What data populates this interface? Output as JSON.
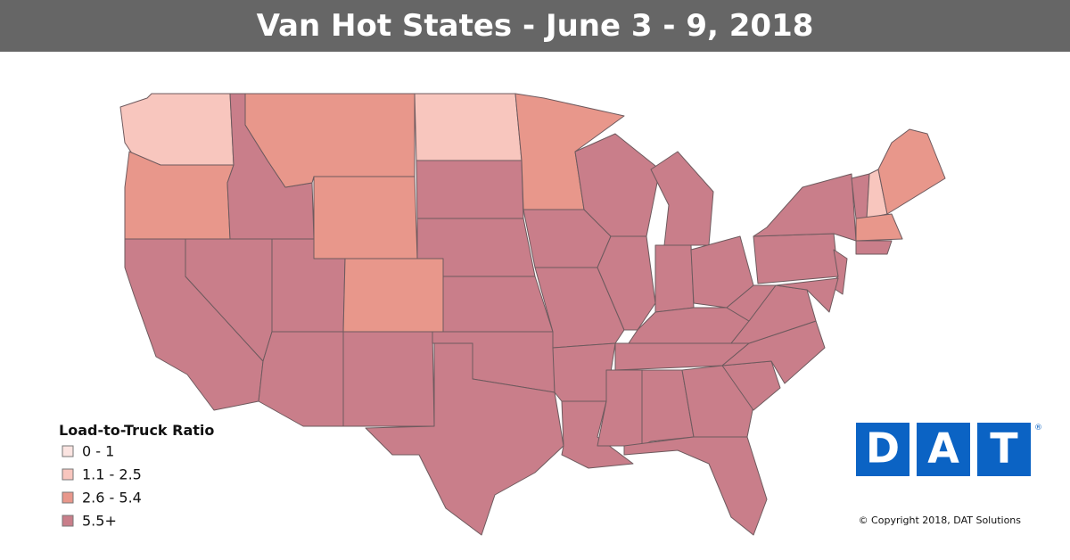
{
  "header": {
    "title": "Van Hot States - June 3 - 9, 2018"
  },
  "legend": {
    "title": "Load-to-Truck Ratio",
    "items": [
      {
        "label": "0 - 1",
        "color": "#fbe4e1"
      },
      {
        "label": "1.1 - 2.5",
        "color": "#f8c6be"
      },
      {
        "label": "2.6 - 5.4",
        "color": "#e8978b"
      },
      {
        "label": "5.5+",
        "color": "#c97e8a"
      }
    ]
  },
  "logo": {
    "letters": [
      "D",
      "A",
      "T"
    ],
    "mark": "®"
  },
  "copyright": "© Copyright 2018, DAT Solutions"
}
